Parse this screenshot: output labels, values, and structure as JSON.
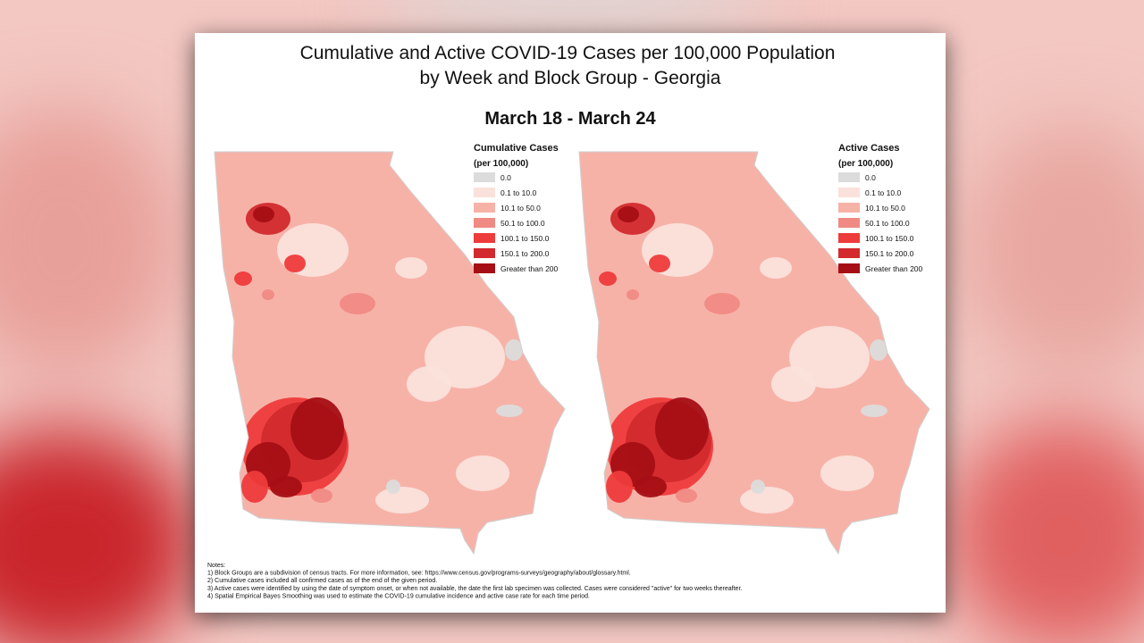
{
  "header": {
    "title_lines": [
      "Cumulative and Active COVID-19 Cases per 100,000 Population",
      "by Week and Block Group - Georgia"
    ],
    "period": "March 18 - March 24"
  },
  "legend_items": [
    {
      "label": "0.0",
      "color": "#dcdcdc"
    },
    {
      "label": "0.1 to 10.0",
      "color": "#fbe1db"
    },
    {
      "label": "10.1 to 50.0",
      "color": "#f7b2a8"
    },
    {
      "label": "50.1 to 100.0",
      "color": "#f08a84"
    },
    {
      "label": "100.1 to 150.0",
      "color": "#ee3b3b"
    },
    {
      "label": "150.1 to 200.0",
      "color": "#d22a2e"
    },
    {
      "label": "Greater than 200",
      "color": "#a50f15"
    }
  ],
  "maps": [
    {
      "legend_title": "Cumulative Cases",
      "legend_subtitle": "(per 100,000)"
    },
    {
      "legend_title": "Active Cases",
      "legend_subtitle": "(per 100,000)"
    }
  ],
  "notes": [
    "Notes:",
    "1) Block Groups are a subdivision of census tracts. For more information, see: https://www.census.gov/programs-surveys/geography/about/glossary.html.",
    "2) Cumulative cases included all confirmed cases as of the end of the given period.",
    "3) Active cases were identified by using the date of symptom onset, or when not available, the date the first lab specimen was collected. Cases were considered \"active\" for two weeks thereafter.",
    "4) Spatial Empirical Bayes Smoothing was used to estimate the COVID-19 cumulative incidence and active case rate for each time period."
  ]
}
